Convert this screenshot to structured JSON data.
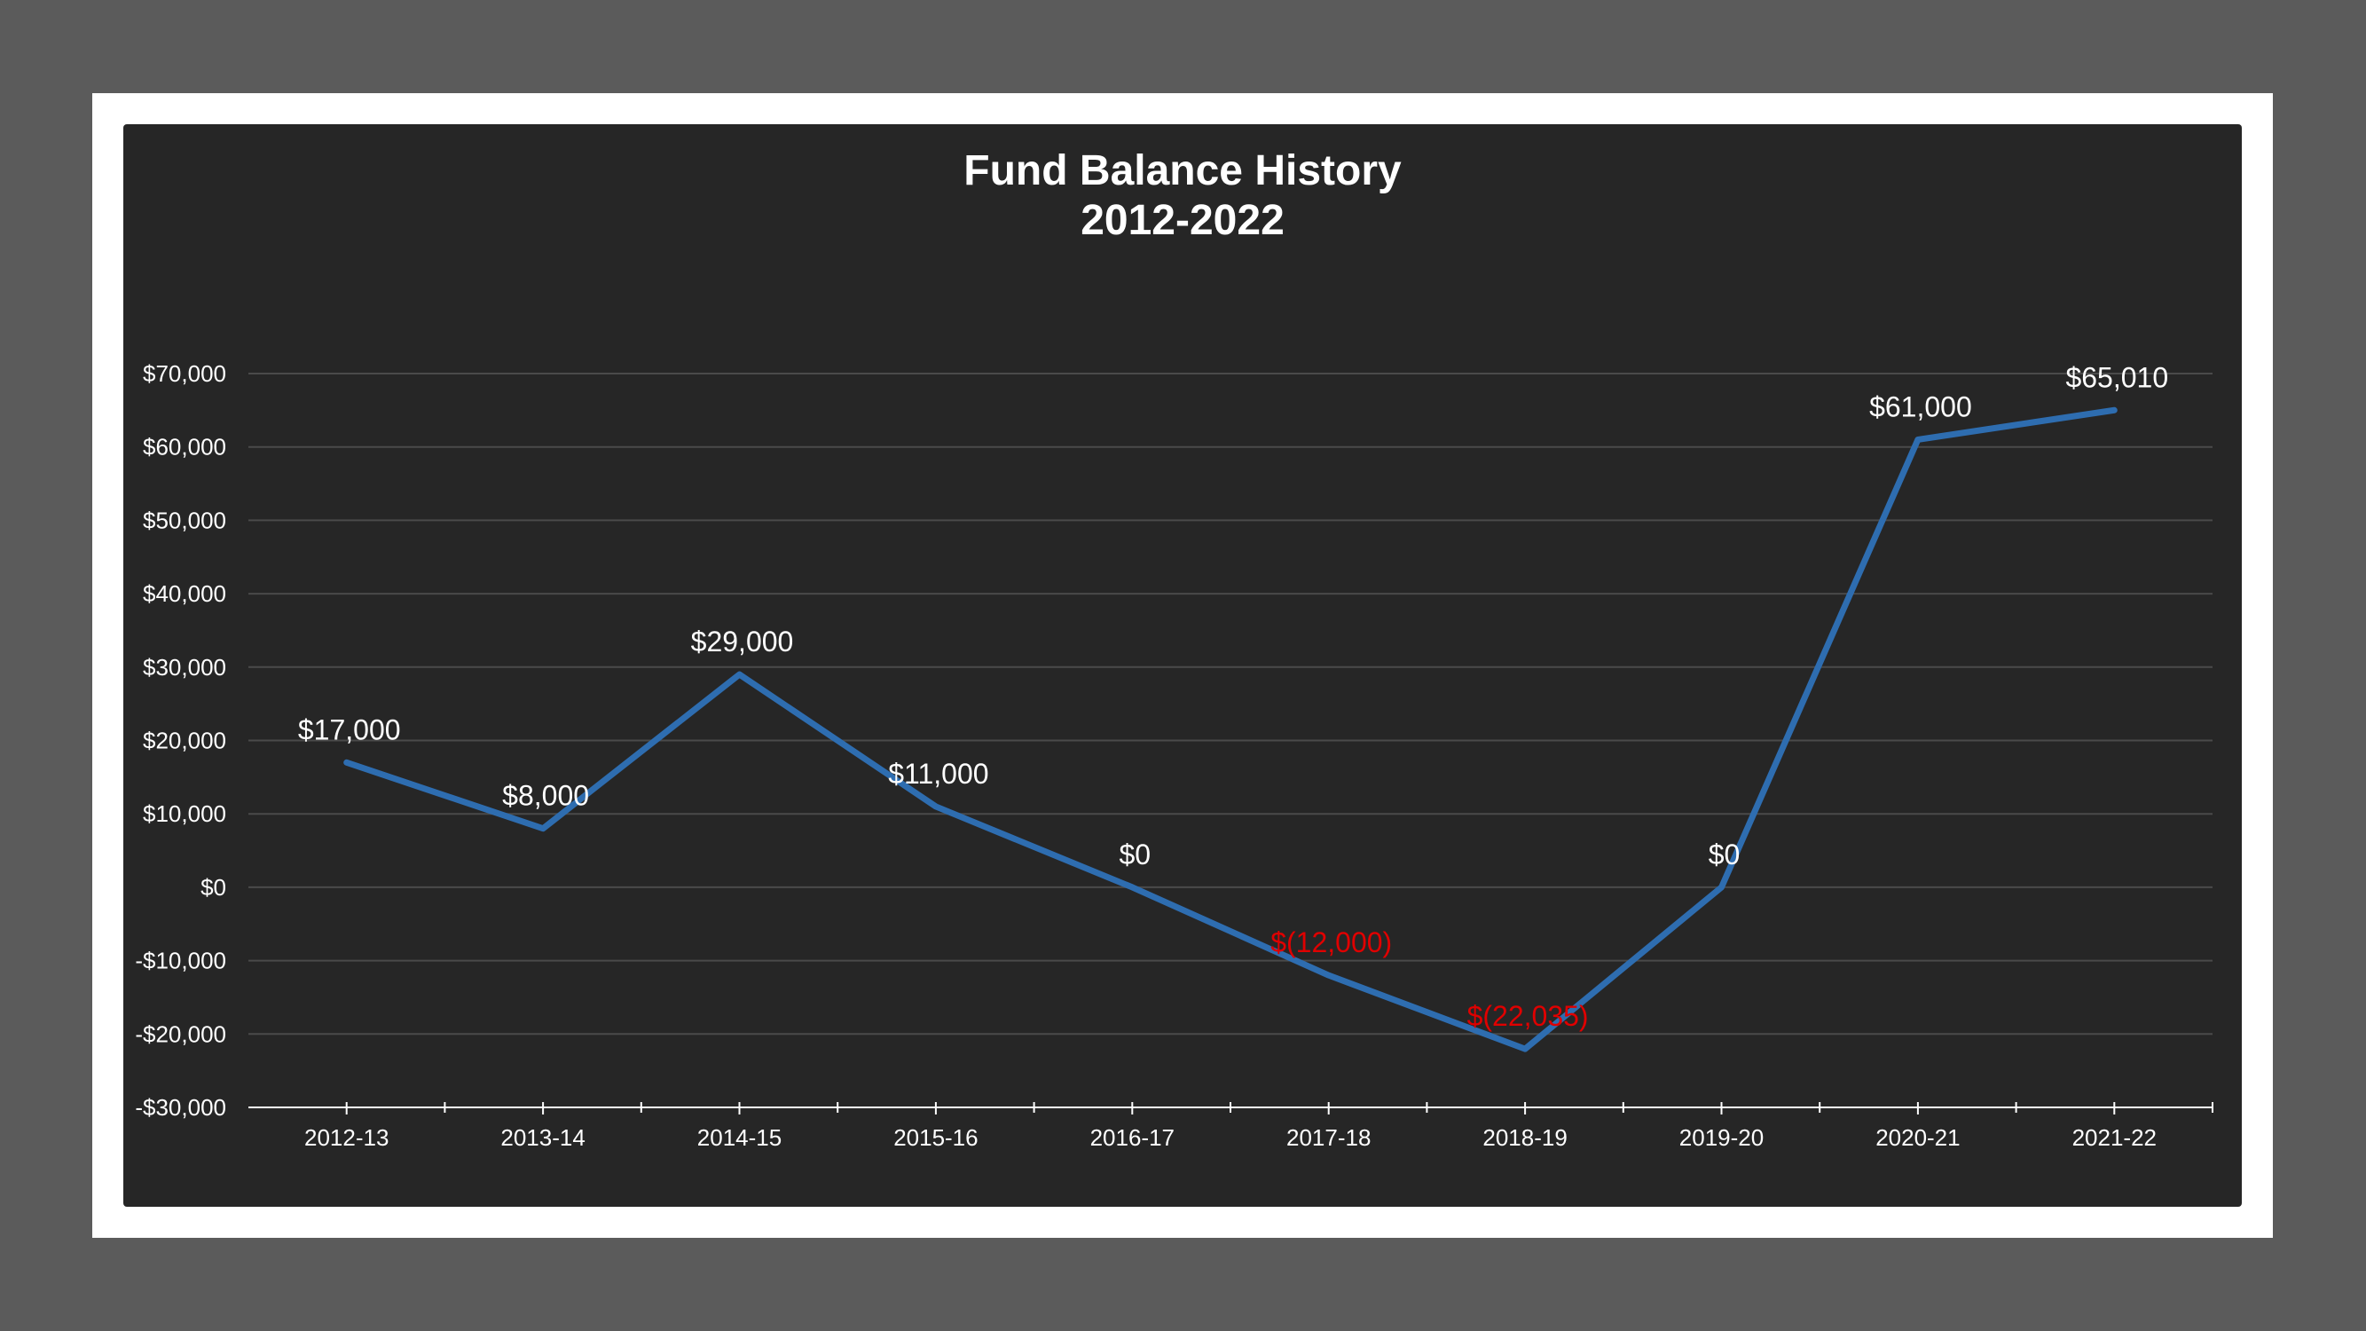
{
  "chart_data": {
    "type": "line",
    "title": [
      "Fund Balance History",
      "2012-2022"
    ],
    "categories": [
      "2012-13",
      "2013-14",
      "2014-15",
      "2015-16",
      "2016-17",
      "2017-18",
      "2018-19",
      "2019-20",
      "2020-21",
      "2021-22"
    ],
    "series": [
      {
        "values": [
          17000,
          8000,
          29000,
          11000,
          0,
          -12000,
          -22035,
          0,
          61000,
          65010
        ],
        "data_labels": [
          "$17,000",
          "$8,000",
          "$29,000",
          "$11,000",
          "$0",
          "$(12,000)",
          "$(22,035)",
          "$0",
          "$61,000",
          "$65,010"
        ],
        "color": "#2e6db0"
      }
    ],
    "ylim": [
      -30000,
      70000
    ],
    "yticks": [
      70000,
      60000,
      50000,
      40000,
      30000,
      20000,
      10000,
      0,
      -10000,
      -20000,
      -30000
    ],
    "ytick_labels": [
      "$70,000",
      "$60,000",
      "$50,000",
      "$40,000",
      "$30,000",
      "$20,000",
      "$10,000",
      "$0",
      "-$10,000",
      "-$20,000",
      "-$30,000"
    ],
    "grid": true,
    "positive_label_color": "#ffffff",
    "negative_label_color": "#e00000",
    "background": "#262626"
  }
}
